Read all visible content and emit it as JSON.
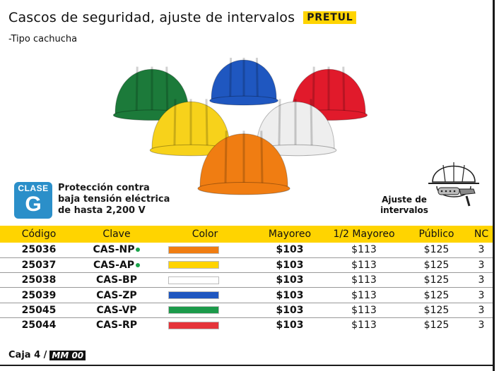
{
  "header": {
    "title": "Cascos de seguridad, ajuste de intervalos",
    "brand": "PRETUL",
    "subtitle": "-Tipo cachucha"
  },
  "photo": {
    "helmet_colors": [
      "#1c7a3a",
      "#1f57c0",
      "#e11a2b",
      "#f7d21b",
      "#eeeeee",
      "#f07d12"
    ]
  },
  "clase": {
    "badge_top": "CLASE",
    "badge_letter": "G",
    "line1": "Protección contra",
    "line2": "baja tensión eléctrica",
    "line3": "de hasta 2,200 V"
  },
  "ajuste": {
    "line1": "Ajuste de",
    "line2": "intervalos"
  },
  "table": {
    "headers": {
      "codigo": "Código",
      "clave": "Clave",
      "color": "Color",
      "mayoreo": "Mayoreo",
      "medio_mayoreo": "1/2 Mayoreo",
      "publico": "Público",
      "nc": "NC"
    },
    "rows": [
      {
        "codigo": "25036",
        "clave": "CAS-NP",
        "dot": true,
        "color": "#f07d12",
        "mayoreo": "$103",
        "medio": "$113",
        "publico": "$125",
        "nc": "3"
      },
      {
        "codigo": "25037",
        "clave": "CAS-AP",
        "dot": true,
        "color": "#ffd400",
        "mayoreo": "$103",
        "medio": "$113",
        "publico": "$125",
        "nc": "3"
      },
      {
        "codigo": "25038",
        "clave": "CAS-BP",
        "dot": false,
        "color": "#ffffff",
        "mayoreo": "$103",
        "medio": "$113",
        "publico": "$125",
        "nc": "3"
      },
      {
        "codigo": "25039",
        "clave": "CAS-ZP",
        "dot": false,
        "color": "#1f57c0",
        "mayoreo": "$103",
        "medio": "$113",
        "publico": "$125",
        "nc": "3"
      },
      {
        "codigo": "25045",
        "clave": "CAS-VP",
        "dot": false,
        "color": "#1c9a4a",
        "mayoreo": "$103",
        "medio": "$113",
        "publico": "$125",
        "nc": "3"
      },
      {
        "codigo": "25044",
        "clave": "CAS-RP",
        "dot": false,
        "color": "#e5343a",
        "mayoreo": "$103",
        "medio": "$113",
        "publico": "$125",
        "nc": "3"
      }
    ]
  },
  "footer": {
    "caja": "Caja 4 /",
    "mm": "MM 00"
  }
}
